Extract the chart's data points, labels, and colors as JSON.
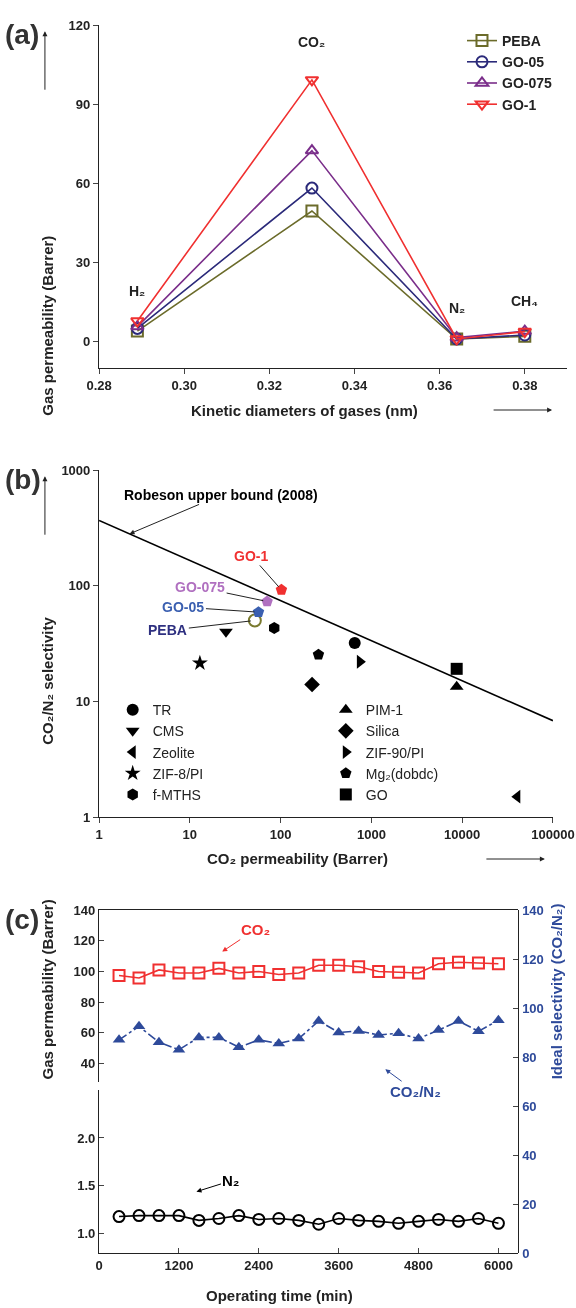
{
  "chart_data": [
    {
      "type": "line",
      "title": "(a)",
      "xlabel": "Kinetic diameters of gases (nm)",
      "ylabel": "Gas permeability (Barrer)",
      "x": [
        0.289,
        0.33,
        0.364,
        0.38
      ],
      "series": [
        {
          "name": "PEBA",
          "color": "#6b6b2a",
          "marker": "square-open",
          "values": [
            4,
            49.5,
            1,
            2
          ]
        },
        {
          "name": "GO-05",
          "color": "#2b2a7a",
          "marker": "circle-open",
          "values": [
            5,
            58.2,
            1,
            2.5
          ]
        },
        {
          "name": "GO-075",
          "color": "#7a2e8a",
          "marker": "triangle-up-open",
          "values": [
            5.7,
            72.4,
            1.5,
            4
          ]
        },
        {
          "name": "GO-1",
          "color": "#f03030",
          "marker": "triangle-down-open",
          "values": [
            7.8,
            99.2,
            1,
            3.8
          ]
        }
      ],
      "annotations": [
        "H₂",
        "CO₂",
        "N₂",
        "CH₄"
      ],
      "xlim": [
        0.28,
        0.39
      ],
      "ylim": [
        -10,
        120
      ],
      "xticks": [
        {
          "value": 0.28,
          "label": "0.28"
        },
        {
          "value": 0.3,
          "label": "0.30"
        },
        {
          "value": 0.32,
          "label": "0.32"
        },
        {
          "value": 0.34,
          "label": "0.34"
        },
        {
          "value": 0.36,
          "label": "0.36"
        },
        {
          "value": 0.38,
          "label": "0.38"
        }
      ],
      "yticks": [
        0,
        30,
        60,
        90,
        120
      ],
      "legend": "top right"
    },
    {
      "type": "scatter",
      "title": "(b)",
      "xlabel": "CO₂ permeability (Barrer)",
      "ylabel": "CO₂/N₂ selectivity",
      "log": "xy",
      "series": [
        {
          "name": "Robeson upper bound (2008)",
          "type": "line",
          "color": "#000000",
          "marker": "none",
          "x": [
            1,
            100000
          ],
          "values": [
            366,
            6.8
          ]
        },
        {
          "name": "PEBA",
          "color": "#7a7a30",
          "marker": "circle-open",
          "x": [
            52
          ],
          "values": [
            50
          ]
        },
        {
          "name": "GO-05",
          "color": "#3a5fb0",
          "x": [
            57
          ],
          "values": [
            59
          ]
        },
        {
          "name": "GO-075",
          "color": "#b070c0",
          "x": [
            71
          ],
          "values": [
            73
          ]
        },
        {
          "name": "GO-1",
          "color": "#f03030",
          "x": [
            102
          ],
          "values": [
            92
          ]
        },
        {
          "name": "TR",
          "color": "#000000",
          "marker": "circle",
          "x": [
            655
          ],
          "values": [
            32
          ]
        },
        {
          "name": "PIM-1",
          "color": "#000000",
          "marker": "triangle-up",
          "x": [
            8700
          ],
          "values": [
            13.4
          ]
        },
        {
          "name": "CMS",
          "color": "#000000",
          "marker": "triangle-down",
          "x": [
            25
          ],
          "values": [
            40
          ]
        },
        {
          "name": "Silica",
          "color": "#000000",
          "marker": "diamond",
          "x": [
            222
          ],
          "values": [
            14
          ]
        },
        {
          "name": "Zeolite",
          "color": "#000000",
          "marker": "triangle-left",
          "x": [
            40500
          ],
          "values": [
            1.5
          ]
        },
        {
          "name": "ZIF-90/PI",
          "color": "#000000",
          "marker": "triangle-right",
          "x": [
            747
          ],
          "values": [
            22
          ]
        },
        {
          "name": "ZIF-8/PI",
          "color": "#000000",
          "marker": "star",
          "x": [
            12.9
          ],
          "values": [
            21.4
          ]
        },
        {
          "name": "Mg₂(dobdc)",
          "color": "#000000",
          "x": [
            261
          ],
          "values": [
            25.3
          ]
        },
        {
          "name": "f-MTHS",
          "color": "#000000",
          "x": [
            85
          ],
          "values": [
            43
          ]
        },
        {
          "name": "GO",
          "color": "#000000",
          "marker": "square",
          "x": [
            8700
          ],
          "values": [
            19.1
          ]
        }
      ],
      "xlim": [
        1,
        100000
      ],
      "ylim": [
        1,
        1000
      ],
      "xticks": [
        1,
        10,
        100,
        1000,
        10000,
        100000
      ],
      "yticks": [
        1,
        10,
        100,
        1000
      ],
      "legend": "bottom left"
    },
    {
      "type": "line",
      "title": "(c)",
      "ylabel": "Gas permeability (Barrer)",
      "y2label": "Ideal selectivity (CO₂/N₂)",
      "x": [
        300,
        600,
        900,
        1200,
        1500,
        1800,
        2100,
        2400,
        2700,
        3000,
        3300,
        3600,
        3900,
        4200,
        4500,
        4800,
        5100,
        5400,
        5700,
        6000
      ],
      "series": [
        {
          "name": "CO₂",
          "color": "#f03030",
          "marker": "square-open",
          "values": [
            97.4,
            95.7,
            101,
            99,
            99,
            102,
            99,
            100,
            98,
            99,
            104,
            104,
            103,
            100,
            99.5,
            99,
            105,
            106,
            105.5,
            105
          ]
        },
        {
          "name": "CO₂/N₂",
          "color": "#2e4a9a",
          "marker": "triangle-up",
          "line_style": "dashed",
          "axis": "y2",
          "values": [
            87,
            92.5,
            86,
            83,
            88,
            88,
            84,
            87,
            85.5,
            87.5,
            94.7,
            90,
            90.6,
            89,
            89.7,
            87.5,
            91,
            94.7,
            90.5,
            95
          ]
        }
      ],
      "xlim": [
        0,
        6300
      ],
      "ylim": [
        28,
        140
      ],
      "y2lim": [
        0,
        140
      ],
      "xticks": [
        0,
        1200,
        2400,
        3600,
        4800,
        6000
      ],
      "yticks": [
        40,
        60,
        80,
        100,
        120,
        140
      ],
      "y2ticks": [
        0,
        20,
        40,
        60,
        80,
        100,
        120,
        140
      ],
      "tick_labels": "y"
    },
    {
      "type": "line",
      "xlabel": "Operating time (min)",
      "x": [
        300,
        600,
        900,
        1200,
        1500,
        1800,
        2100,
        2400,
        2700,
        3000,
        3300,
        3600,
        3900,
        4200,
        4500,
        4800,
        5100,
        5400,
        5700,
        6000
      ],
      "series": [
        {
          "name": "N₂",
          "color": "#000000",
          "marker": "circle-open",
          "values": [
            1.18,
            1.19,
            1.19,
            1.19,
            1.14,
            1.16,
            1.19,
            1.15,
            1.16,
            1.14,
            1.1,
            1.16,
            1.14,
            1.13,
            1.11,
            1.13,
            1.15,
            1.13,
            1.16,
            1.11
          ]
        }
      ],
      "xlim": [
        0,
        6300
      ],
      "ylim": [
        0.8,
        2.5
      ],
      "xticks": [
        0,
        1200,
        2400,
        3600,
        4800,
        6000
      ],
      "yticks": [
        {
          "value": 1.0,
          "label": "1.0"
        },
        {
          "value": 1.5,
          "label": "1.5"
        },
        {
          "value": 2.0,
          "label": "2.0"
        }
      ]
    }
  ]
}
